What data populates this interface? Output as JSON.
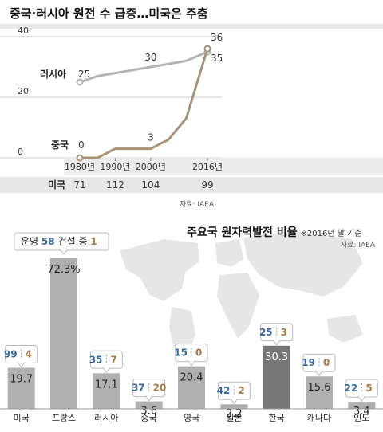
{
  "headline": "중국·러시아 원전 수 급증…미국은 주춤",
  "top_source": "자료: IAEA",
  "bottom_title": "주요국 원자력발전 비율",
  "bottom_note": "※2016년 말 기준",
  "bottom_source": "자료: IAEA",
  "colors": {
    "russia_line": "#b3b3b3",
    "china_line": "#a89274",
    "bar": "#b0b0b0",
    "bar_highlight": "#777777",
    "map": "#e6e6e6",
    "operating": "#3b6aa0",
    "construction": "#a97c47",
    "us_strip": "#e8e8e8"
  },
  "chart_data": [
    {
      "type": "line",
      "title": "중국·러시아 원전 수 급증…미국은 주춤",
      "x": [
        1980,
        1990,
        2000,
        2016
      ],
      "x_tick_labels": [
        "1980년",
        "1990년",
        "2000년",
        "2016년"
      ],
      "ylim": [
        0,
        40
      ],
      "y_ticks": [
        0,
        20,
        40
      ],
      "series": [
        {
          "name": "러시아",
          "x": [
            1980,
            1985,
            1990,
            1995,
            2000,
            2005,
            2010,
            2016
          ],
          "y": [
            25,
            27,
            28,
            29,
            30,
            31,
            32,
            35
          ],
          "labels": [
            {
              "x": 1980,
              "text": "25"
            },
            {
              "x": 2000,
              "text": "30"
            },
            {
              "x": 2016,
              "text": "35"
            }
          ]
        },
        {
          "name": "중국",
          "x": [
            1980,
            1985,
            1990,
            1995,
            2000,
            2005,
            2010,
            2016
          ],
          "y": [
            0,
            0,
            3,
            3,
            3,
            6,
            13,
            36
          ],
          "labels": [
            {
              "x": 1980,
              "text": "0"
            },
            {
              "x": 2000,
              "text": "3"
            },
            {
              "x": 2016,
              "text": "36"
            }
          ]
        }
      ],
      "table_row": {
        "name": "미국",
        "values": [
          "71",
          "112",
          "104",
          "99"
        ]
      }
    },
    {
      "type": "bar",
      "title": "주요국 원자력발전 비율",
      "subtitle": "※2016년 말 기준",
      "categories": [
        "미국",
        "프랑스",
        "러시아",
        "중국",
        "영국",
        "일본",
        "한국",
        "캐나다",
        "인도"
      ],
      "values": [
        19.7,
        72.3,
        17.1,
        3.6,
        20.4,
        2.2,
        30.3,
        15.6,
        3.4
      ],
      "value_labels": [
        "19.7",
        "72.3%",
        "17.1",
        "3.6",
        "20.4",
        "2.2",
        "30.3",
        "15.6",
        "3.4"
      ],
      "highlight": "한국",
      "ylim": [
        0,
        80
      ],
      "operating": [
        99,
        58,
        35,
        37,
        15,
        42,
        25,
        19,
        22
      ],
      "construction": [
        4,
        1,
        7,
        20,
        0,
        2,
        3,
        0,
        5
      ],
      "legend": {
        "operating_label": "운영",
        "construction_label": "건설 중"
      }
    }
  ]
}
